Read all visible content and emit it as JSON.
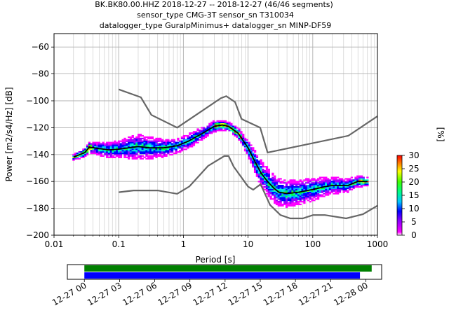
{
  "chart_data": [
    {
      "type": "heatmap",
      "title_lines": [
        "BK.BK80.00.HHZ   2018-12-27 -- 2018-12-27  (46/46 segments)",
        "sensor_type CMG-3T sensor_sn T310034",
        "datalogger_type GuralpMinimus+ datalogger_sn MINP-DF59"
      ],
      "xlabel": "Period [s]",
      "ylabel": "Power [m2/s4/Hz] [dB]",
      "xscale": "log",
      "xlim": [
        0.01,
        1000
      ],
      "ylim": [
        -200,
        -50
      ],
      "xticks": [
        {
          "v": 0.01,
          "label": "0.01"
        },
        {
          "v": 0.1,
          "label": "0.1"
        },
        {
          "v": 1,
          "label": "1"
        },
        {
          "v": 10,
          "label": "10"
        },
        {
          "v": 100,
          "label": "100"
        },
        {
          "v": 1000,
          "label": "1000"
        }
      ],
      "yticks": [
        {
          "v": -60,
          "label": "−60"
        },
        {
          "v": -80,
          "label": "−80"
        },
        {
          "v": -100,
          "label": "−100"
        },
        {
          "v": -120,
          "label": "−120"
        },
        {
          "v": -140,
          "label": "−140"
        },
        {
          "v": -160,
          "label": "−160"
        },
        {
          "v": -180,
          "label": "−180"
        },
        {
          "v": -200,
          "label": "−200"
        }
      ],
      "grid": true,
      "colorbar": {
        "label": "[%]",
        "min": 0,
        "max": 30,
        "ticks": [
          {
            "v": 0,
            "label": "0"
          },
          {
            "v": 5,
            "label": "5"
          },
          {
            "v": 10,
            "label": "10"
          },
          {
            "v": 15,
            "label": "15"
          },
          {
            "v": 20,
            "label": "20"
          },
          {
            "v": 25,
            "label": "25"
          },
          {
            "v": 30,
            "label": "30"
          }
        ]
      },
      "noise_models": {
        "color": "#666666",
        "high": [
          [
            0.1,
            -91.5
          ],
          [
            0.22,
            -97.4
          ],
          [
            0.32,
            -110.5
          ],
          [
            0.8,
            -120
          ],
          [
            3.8,
            -98
          ],
          [
            4.6,
            -96.5
          ],
          [
            6.3,
            -101
          ],
          [
            7.9,
            -113.5
          ],
          [
            15.4,
            -120
          ],
          [
            20,
            -138.5
          ],
          [
            354.8,
            -126
          ],
          [
            1000,
            -111.5
          ]
        ],
        "low": [
          [
            0.1,
            -168
          ],
          [
            0.17,
            -166.7
          ],
          [
            0.4,
            -166.7
          ],
          [
            0.8,
            -169.2
          ],
          [
            1.24,
            -163.7
          ],
          [
            2.4,
            -148.5
          ],
          [
            4.3,
            -141.1
          ],
          [
            5.0,
            -141.1
          ],
          [
            6.0,
            -149
          ],
          [
            10.0,
            -163.8
          ],
          [
            12.0,
            -166.2
          ],
          [
            15.6,
            -162.1
          ],
          [
            21.9,
            -177.5
          ],
          [
            31.6,
            -185
          ],
          [
            45,
            -187.5
          ],
          [
            70,
            -187.5
          ],
          [
            101,
            -185
          ],
          [
            154,
            -185
          ],
          [
            328,
            -187.5
          ],
          [
            600,
            -184.4
          ],
          [
            1000,
            -178
          ]
        ]
      },
      "mean_psd": {
        "color": "#000000",
        "points": [
          [
            0.02,
            -142
          ],
          [
            0.025,
            -140
          ],
          [
            0.03,
            -138.5
          ],
          [
            0.035,
            -134.5
          ],
          [
            0.05,
            -135.5
          ],
          [
            0.07,
            -136.5
          ],
          [
            0.1,
            -136
          ],
          [
            0.2,
            -134
          ],
          [
            0.3,
            -135
          ],
          [
            0.5,
            -135
          ],
          [
            0.8,
            -133.5
          ],
          [
            1.2,
            -130
          ],
          [
            2,
            -124
          ],
          [
            3,
            -119
          ],
          [
            4,
            -118
          ],
          [
            5,
            -119
          ],
          [
            7,
            -124
          ],
          [
            10,
            -135
          ],
          [
            13,
            -146
          ],
          [
            16,
            -154
          ],
          [
            20,
            -160
          ],
          [
            25,
            -165
          ],
          [
            30,
            -168
          ],
          [
            40,
            -169
          ],
          [
            60,
            -168
          ],
          [
            100,
            -166
          ],
          [
            150,
            -164
          ],
          [
            200,
            -163
          ],
          [
            350,
            -163
          ],
          [
            500,
            -160
          ],
          [
            700,
            -160
          ]
        ]
      },
      "density_spread_db": [
        [
          0.02,
          2
        ],
        [
          0.03,
          3
        ],
        [
          0.05,
          5
        ],
        [
          0.1,
          6
        ],
        [
          0.2,
          9
        ],
        [
          0.4,
          7
        ],
        [
          0.8,
          5
        ],
        [
          1.5,
          5
        ],
        [
          3,
          4
        ],
        [
          5,
          3
        ],
        [
          8,
          4
        ],
        [
          10,
          6
        ],
        [
          15,
          9
        ],
        [
          20,
          10
        ],
        [
          30,
          10
        ],
        [
          60,
          9
        ],
        [
          100,
          8
        ],
        [
          200,
          6
        ],
        [
          500,
          4
        ],
        [
          700,
          3
        ]
      ]
    },
    {
      "type": "timeline",
      "xlim": [
        "2018-12-27 00:00",
        "2018-12-28 02:00"
      ],
      "xticks": [
        {
          "v": "2018-12-27 00:00",
          "label": "12-27 00"
        },
        {
          "v": "2018-12-27 03:00",
          "label": "12-27 03"
        },
        {
          "v": "2018-12-27 06:00",
          "label": "12-27 06"
        },
        {
          "v": "2018-12-27 09:00",
          "label": "12-27 09"
        },
        {
          "v": "2018-12-27 12:00",
          "label": "12-27 12"
        },
        {
          "v": "2018-12-27 15:00",
          "label": "12-27 15"
        },
        {
          "v": "2018-12-27 18:00",
          "label": "12-27 18"
        },
        {
          "v": "2018-12-27 21:00",
          "label": "12-27 21"
        },
        {
          "v": "2018-12-28 00:00",
          "label": "12-28 00"
        }
      ],
      "bars": [
        {
          "color": "#008000",
          "start": "2018-12-27 00:00",
          "end": "2018-12-28 00:30"
        },
        {
          "color": "#0000ff",
          "start": "2018-12-27 00:00",
          "end": "2018-12-27 23:30"
        }
      ]
    }
  ]
}
